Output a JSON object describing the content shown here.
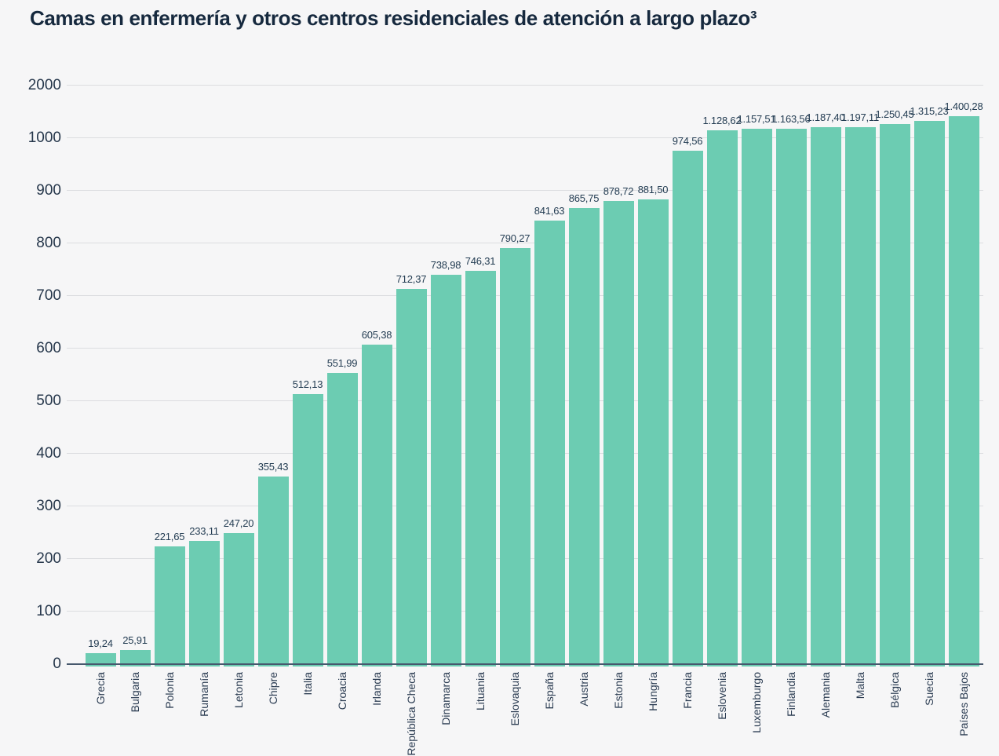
{
  "header": {
    "title": "Camas en enfermería y otros centros residenciales de atención a largo plazo³"
  },
  "chart_data": {
    "type": "bar",
    "title": "Camas en enfermería y otros centros residenciales de atención a largo plazo³",
    "xlabel": "",
    "ylabel": "",
    "categories": [
      "Grecia",
      "Bulgaria",
      "Polonia",
      "Rumanía",
      "Letonia",
      "Chipre",
      "Italia",
      "Croacia",
      "Irlanda",
      "República Checa",
      "Dinamarca",
      "Lituania",
      "Eslovaquia",
      "España",
      "Austria",
      "Estonia",
      "Hungría",
      "Francia",
      "Eslovenia",
      "Luxemburgo",
      "Finlandia",
      "Alemania",
      "Malta",
      "Bélgica",
      "Suecia",
      "Países Bajos"
    ],
    "values": [
      19.24,
      25.91,
      221.65,
      233.11,
      247.2,
      355.43,
      512.13,
      551.99,
      605.38,
      712.37,
      738.98,
      746.31,
      790.27,
      841.63,
      865.75,
      878.72,
      881.5,
      974.56,
      1128.62,
      1157.51,
      1163.56,
      1187.4,
      1197.11,
      1250.45,
      1315.23,
      1400.28
    ],
    "value_labels": [
      "19,24",
      "25,91",
      "221,65",
      "233,11",
      "247,20",
      "355,43",
      "512,13",
      "551,99",
      "605,38",
      "712,37",
      "738,98",
      "746,31",
      "790,27",
      "841,63",
      "865,75",
      "878,72",
      "881,50",
      "974,56",
      "1.128,62",
      "1.157,51",
      "1.163,56",
      "1.187,40",
      "1.197,11",
      "1.250,45",
      "1.315,23",
      "1.400,28"
    ],
    "y_ticks": [
      0,
      100,
      200,
      300,
      400,
      500,
      600,
      700,
      800,
      900,
      1000,
      2000
    ],
    "y_tick_labels": [
      "0",
      "100",
      "200",
      "300",
      "400",
      "500",
      "600",
      "700",
      "800",
      "900",
      "1000",
      "2000"
    ],
    "ylim": [
      0,
      2000
    ],
    "axis_scale_note": "linear 0-1000 with compressed segment 1000-2000",
    "grid": "horizontal",
    "legend": "none",
    "colors": {
      "bar": "#6CCCB2",
      "grid": "#DCDDE0",
      "axis": "#47586D",
      "text": "#233C52",
      "tick_text": "#26374B",
      "title_text": "#16293E",
      "background": "#F6F6F7"
    }
  }
}
